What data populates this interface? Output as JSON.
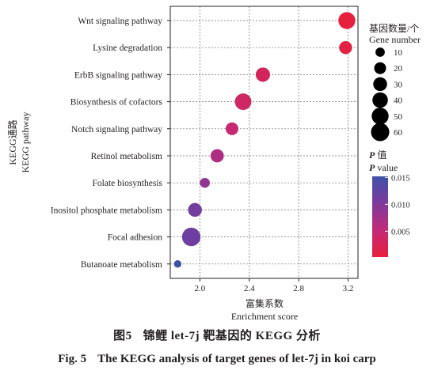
{
  "figure": {
    "caption_cn_number": "图5",
    "caption_cn_text": "锦鲤 let-7j 靶基因的 KEGG 分析",
    "caption_en_number": "Fig. 5",
    "caption_en_text": "The KEGG analysis of target genes of let-7j in koi carp"
  },
  "chart_data": {
    "type": "scatter",
    "title": "",
    "xlabel_cn": "富集系数",
    "xlabel_en": "Enrichment score",
    "ylabel_cn": "KEGG通路",
    "ylabel_en": "KEGG pathway",
    "xlim": [
      1.76,
      3.28
    ],
    "xticks": [
      2.0,
      2.4,
      2.8,
      3.2
    ],
    "xtick_labels": [
      "2.0",
      "2.4",
      "2.8",
      "3.2"
    ],
    "grid": true,
    "categories": [
      "Wnt signaling pathway",
      "Lysine degradation",
      "ErbB signaling pathway",
      "Biosynthesis of cofactors",
      "Notch signaling pathway",
      "Retinol metabolism",
      "Folate biosynthesis",
      "Inositol phosphate metabolism",
      "Focal adhesion",
      "Butanoate metabolism"
    ],
    "points": [
      {
        "pathway": "Wnt signaling pathway",
        "enrichment": 3.19,
        "gene_number": 50,
        "p_value": 0.0005
      },
      {
        "pathway": "Lysine degradation",
        "enrichment": 3.18,
        "gene_number": 25,
        "p_value": 0.0008
      },
      {
        "pathway": "ErbB signaling pathway",
        "enrichment": 2.51,
        "gene_number": 33,
        "p_value": 0.0028
      },
      {
        "pathway": "Biosynthesis of cofactors",
        "enrichment": 2.35,
        "gene_number": 47,
        "p_value": 0.0035
      },
      {
        "pathway": "Notch signaling pathway",
        "enrichment": 2.26,
        "gene_number": 24,
        "p_value": 0.0045
      },
      {
        "pathway": "Retinol metabolism",
        "enrichment": 2.14,
        "gene_number": 27,
        "p_value": 0.0065
      },
      {
        "pathway": "Folate biosynthesis",
        "enrichment": 2.04,
        "gene_number": 12,
        "p_value": 0.0085
      },
      {
        "pathway": "Inositol phosphate metabolism",
        "enrichment": 1.96,
        "gene_number": 30,
        "p_value": 0.0108
      },
      {
        "pathway": "Focal adhesion",
        "enrichment": 1.93,
        "gene_number": 62,
        "p_value": 0.0112
      },
      {
        "pathway": "Butanoate metabolism",
        "enrichment": 1.82,
        "gene_number": 5,
        "p_value": 0.015
      }
    ],
    "size_legend": {
      "title_cn": "基因数量/个",
      "title_en": "Gene number",
      "values": [
        10,
        20,
        30,
        40,
        50,
        60
      ],
      "labels": [
        "10",
        "20",
        "30",
        "40",
        "50",
        "60"
      ]
    },
    "color_legend": {
      "title_cn_prefix": "P",
      "title_cn_suffix": " 值",
      "title_en_prefix": "P",
      "title_en_suffix": " value",
      "ticks": [
        0.015,
        0.01,
        0.005
      ],
      "tick_labels": [
        "0.015",
        "0.010",
        "0.005"
      ],
      "range": [
        0.0002,
        0.0152
      ],
      "colormap": [
        "#e8203a",
        "#c02a7a",
        "#7a3a9e",
        "#3f52a8"
      ]
    }
  }
}
